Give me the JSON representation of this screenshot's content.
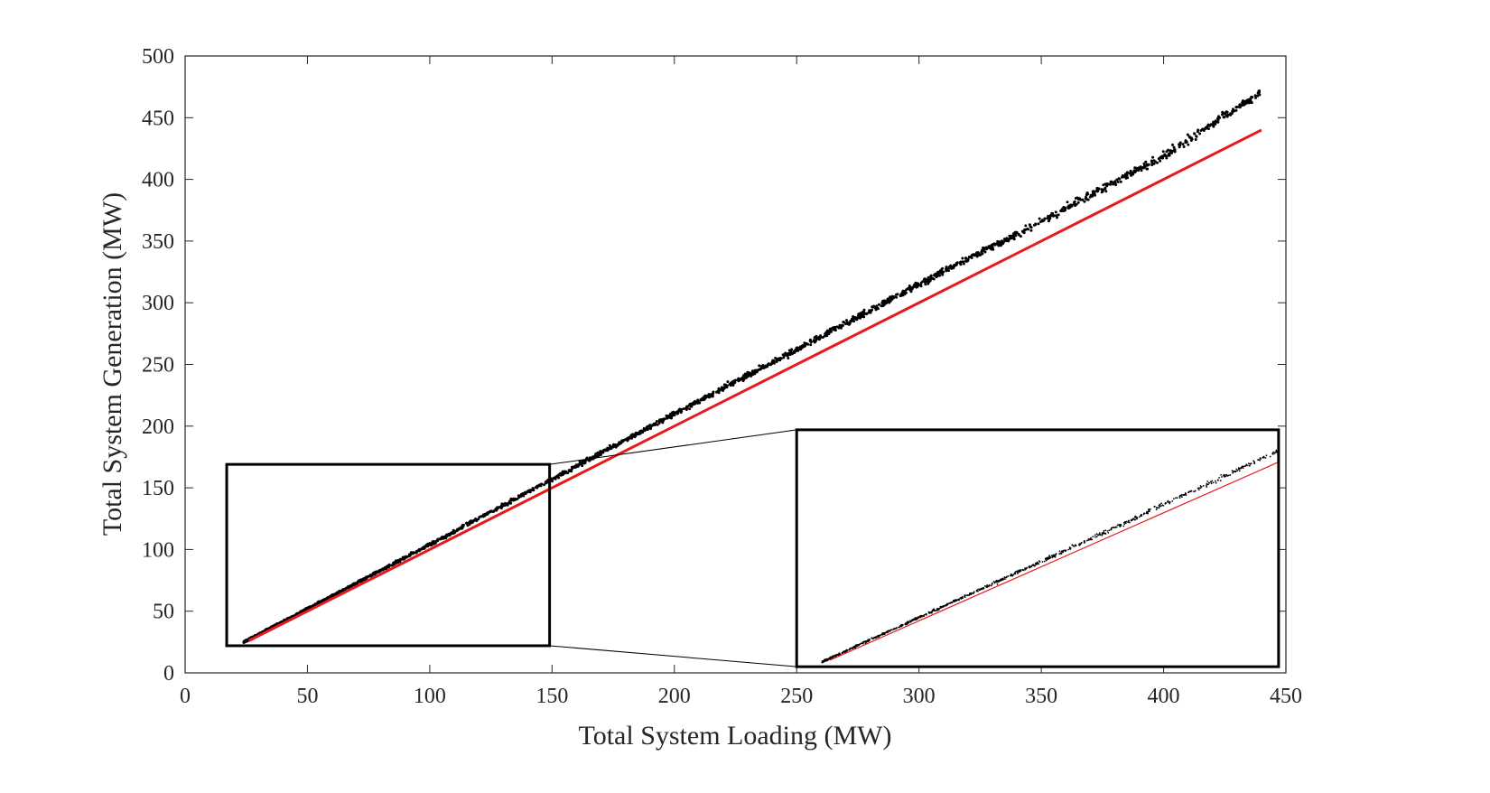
{
  "chart_data": {
    "type": "scatter",
    "title": "",
    "xlabel": "Total System Loading (MW)",
    "ylabel": "Total System Generation (MW)",
    "xlim": [
      0,
      450
    ],
    "ylim": [
      0,
      500
    ],
    "xticks": [
      0,
      50,
      100,
      150,
      200,
      250,
      300,
      350,
      400,
      450
    ],
    "yticks": [
      0,
      50,
      100,
      150,
      200,
      250,
      300,
      350,
      400,
      450,
      500
    ],
    "grid": false,
    "legend": "none",
    "series": [
      {
        "kind": "scatter",
        "color": "#000000",
        "x_range": [
          24,
          440
        ],
        "trend": {
          "x": [
            24,
            100,
            150,
            200,
            250,
            300,
            350,
            400,
            440
          ],
          "y": [
            25,
            104,
            157,
            210,
            262,
            315,
            366,
            419,
            471
          ]
        },
        "spread_growth": "increases with loading"
      },
      {
        "kind": "line",
        "color": "#e8191a",
        "x": [
          26,
          440
        ],
        "y": [
          26,
          440
        ]
      }
    ],
    "annotations": [
      {
        "type": "zoom-inset",
        "source_region": {
          "xlim": [
            17,
            149
          ],
          "ylim": [
            22,
            169
          ]
        },
        "inset_region": {
          "xlim": [
            250,
            447
          ],
          "ylim": [
            5,
            197
          ]
        },
        "inset_content": "magnified view of the scatter points and the red reference line"
      }
    ]
  }
}
